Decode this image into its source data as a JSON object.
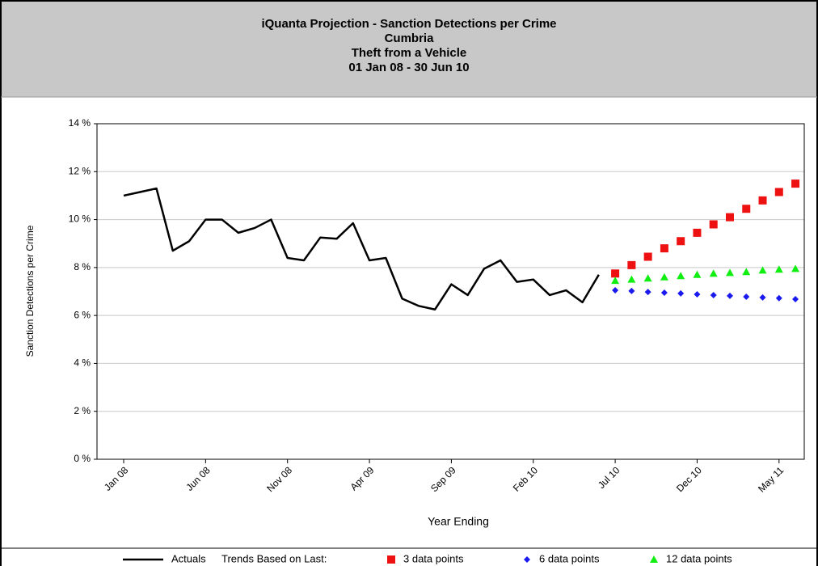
{
  "chart_data": {
    "type": "line",
    "title": [
      "iQuanta Projection - Sanction Detections per Crime",
      "Cumbria",
      "Theft from a Vehicle",
      "01 Jan 08 - 30 Jun 10"
    ],
    "xlabel": "Year Ending",
    "ylabel": "Sanction Detections per Crime",
    "legend_title": "Trends Based on Last:",
    "categories": [
      "Jan 08",
      null,
      null,
      null,
      null,
      "Jun 08",
      null,
      null,
      null,
      null,
      "Nov 08",
      null,
      null,
      null,
      null,
      "Apr 09",
      null,
      null,
      null,
      null,
      "Sep 09",
      null,
      null,
      null,
      null,
      "Feb 10",
      null,
      null,
      null,
      null,
      "Jul 10",
      null,
      null,
      null,
      null,
      "Dec 10",
      null,
      null,
      null,
      null,
      "May 11",
      null
    ],
    "series": [
      {
        "name": "Actuals",
        "color": "#000000",
        "marker": "line",
        "values": [
          11.0,
          11.15,
          11.3,
          8.7,
          9.1,
          10.0,
          10.0,
          9.45,
          9.65,
          10.0,
          8.4,
          8.3,
          9.25,
          9.2,
          9.85,
          8.3,
          8.4,
          6.7,
          6.4,
          6.25,
          7.3,
          6.85,
          7.95,
          8.3,
          7.4,
          7.5,
          6.85,
          7.05,
          6.55,
          7.7,
          null,
          null,
          null,
          null,
          null,
          null,
          null,
          null,
          null,
          null,
          null,
          null
        ]
      },
      {
        "name": "3 data points",
        "color": "#ee1111",
        "marker": "square",
        "values": [
          null,
          null,
          null,
          null,
          null,
          null,
          null,
          null,
          null,
          null,
          null,
          null,
          null,
          null,
          null,
          null,
          null,
          null,
          null,
          null,
          null,
          null,
          null,
          null,
          null,
          null,
          null,
          null,
          null,
          null,
          7.75,
          8.1,
          8.45,
          8.8,
          9.1,
          9.45,
          9.8,
          10.1,
          10.45,
          10.8,
          11.15,
          11.5
        ]
      },
      {
        "name": "6 data points",
        "color": "#1a1aee",
        "marker": "diamond",
        "values": [
          null,
          null,
          null,
          null,
          null,
          null,
          null,
          null,
          null,
          null,
          null,
          null,
          null,
          null,
          null,
          null,
          null,
          null,
          null,
          null,
          null,
          null,
          null,
          null,
          null,
          null,
          null,
          null,
          null,
          null,
          7.05,
          7.02,
          6.98,
          6.95,
          6.92,
          6.88,
          6.85,
          6.82,
          6.78,
          6.75,
          6.72,
          6.68
        ]
      },
      {
        "name": "12 data points",
        "color": "#11ee11",
        "marker": "triangle",
        "values": [
          null,
          null,
          null,
          null,
          null,
          null,
          null,
          null,
          null,
          null,
          null,
          null,
          null,
          null,
          null,
          null,
          null,
          null,
          null,
          null,
          null,
          null,
          null,
          null,
          null,
          null,
          null,
          null,
          null,
          null,
          7.45,
          7.5,
          7.55,
          7.6,
          7.65,
          7.7,
          7.75,
          7.78,
          7.82,
          7.88,
          7.92,
          7.95
        ]
      }
    ],
    "ylim": [
      0,
      14
    ],
    "yticks": [
      {
        "value": 0,
        "label": "0 %"
      },
      {
        "value": 2,
        "label": "2 %"
      },
      {
        "value": 4,
        "label": "4 %"
      },
      {
        "value": 6,
        "label": "6 %"
      },
      {
        "value": 8,
        "label": "8 %"
      },
      {
        "value": 10,
        "label": "10 %"
      },
      {
        "value": 12,
        "label": "12 %"
      },
      {
        "value": 14,
        "label": "14 %"
      }
    ],
    "grid": true
  }
}
